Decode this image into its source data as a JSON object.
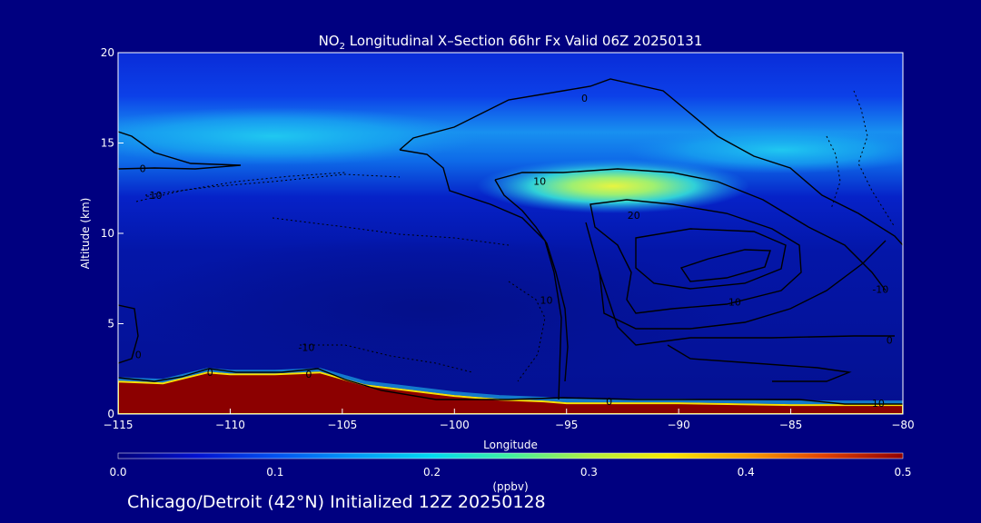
{
  "chart_data": {
    "type": "heatmap",
    "title": "NO2 Longitudinal X-Section 66hr  Fx Valid 06Z 20250131",
    "title_parts": {
      "pre": "NO",
      "sub": "2",
      "post": " Longitudinal X–Section 66hr  Fx Valid 06Z 20250131"
    },
    "xlabel": "Longitude",
    "ylabel": "Altitude (km)",
    "xlim": [
      -115,
      -80
    ],
    "ylim": [
      0,
      20
    ],
    "x_ticks": [
      -115,
      -110,
      -105,
      -100,
      -95,
      -90,
      -85,
      -80
    ],
    "x_tick_labels": [
      "−115",
      "−110",
      "−105",
      "−100",
      "−95",
      "−90",
      "−85",
      "−80"
    ],
    "y_ticks": [
      0,
      5,
      10,
      15,
      20
    ],
    "colorbar": {
      "label": "(ppbv)",
      "min": 0.0,
      "max": 0.5,
      "ticks": [
        0.0,
        0.1,
        0.2,
        0.3,
        0.4,
        0.5
      ],
      "tick_labels": [
        "0.0",
        "0.1",
        "0.2",
        "0.3",
        "0.4",
        "0.5"
      ],
      "colormap": [
        "#00007a",
        "#0010d0",
        "#0050f0",
        "#0098f8",
        "#00d8f0",
        "#40f0a0",
        "#b0f040",
        "#f8e800",
        "#f8a000",
        "#e04000",
        "#900000"
      ]
    },
    "field_features": [
      {
        "name": "surface-layer",
        "value": 0.5
      },
      {
        "name": "upper-layer-maximum",
        "lon": -93,
        "alt": 12.7,
        "value": 0.3
      },
      {
        "name": "tropopause-band",
        "alt": 14.5,
        "value": 0.18
      },
      {
        "name": "mid-troposphere-background",
        "value": 0.05
      }
    ],
    "terrain": {
      "lon": [
        -115,
        -113,
        -112,
        -111,
        -110,
        -108,
        -106,
        -104,
        -102,
        -100,
        -98,
        -96,
        -95,
        -90,
        -85,
        -80
      ],
      "alt": [
        1.8,
        1.7,
        2.0,
        2.3,
        2.2,
        2.2,
        2.3,
        1.6,
        1.3,
        1.0,
        0.8,
        0.7,
        0.6,
        0.6,
        0.5,
        0.5
      ]
    },
    "contour_labels": [
      {
        "text": "0",
        "lon": -94.2,
        "alt": 17.5
      },
      {
        "text": "0",
        "lon": -113.9,
        "alt": 13.6
      },
      {
        "text": "-10",
        "lon": -113.4,
        "alt": 12.1
      },
      {
        "text": "10",
        "lon": -96.2,
        "alt": 12.9
      },
      {
        "text": "20",
        "lon": -92.0,
        "alt": 11.0
      },
      {
        "text": "10",
        "lon": -87.5,
        "alt": 6.2
      },
      {
        "text": "-10",
        "lon": -81.0,
        "alt": 6.9
      },
      {
        "text": "0",
        "lon": -80.6,
        "alt": 4.1
      },
      {
        "text": "10",
        "lon": -95.9,
        "alt": 6.3
      },
      {
        "text": "-10",
        "lon": -106.6,
        "alt": 3.7
      },
      {
        "text": "0",
        "lon": -114.1,
        "alt": 3.3
      },
      {
        "text": "0",
        "lon": -110.9,
        "alt": 2.3
      },
      {
        "text": "0",
        "lon": -106.5,
        "alt": 2.2
      },
      {
        "text": "0",
        "lon": -93.1,
        "alt": 0.7
      },
      {
        "text": "10",
        "lon": -81.1,
        "alt": 0.6
      }
    ]
  },
  "footer": {
    "caption": "Chicago/Detroit (42°N) Initialized 12Z 20250128"
  }
}
